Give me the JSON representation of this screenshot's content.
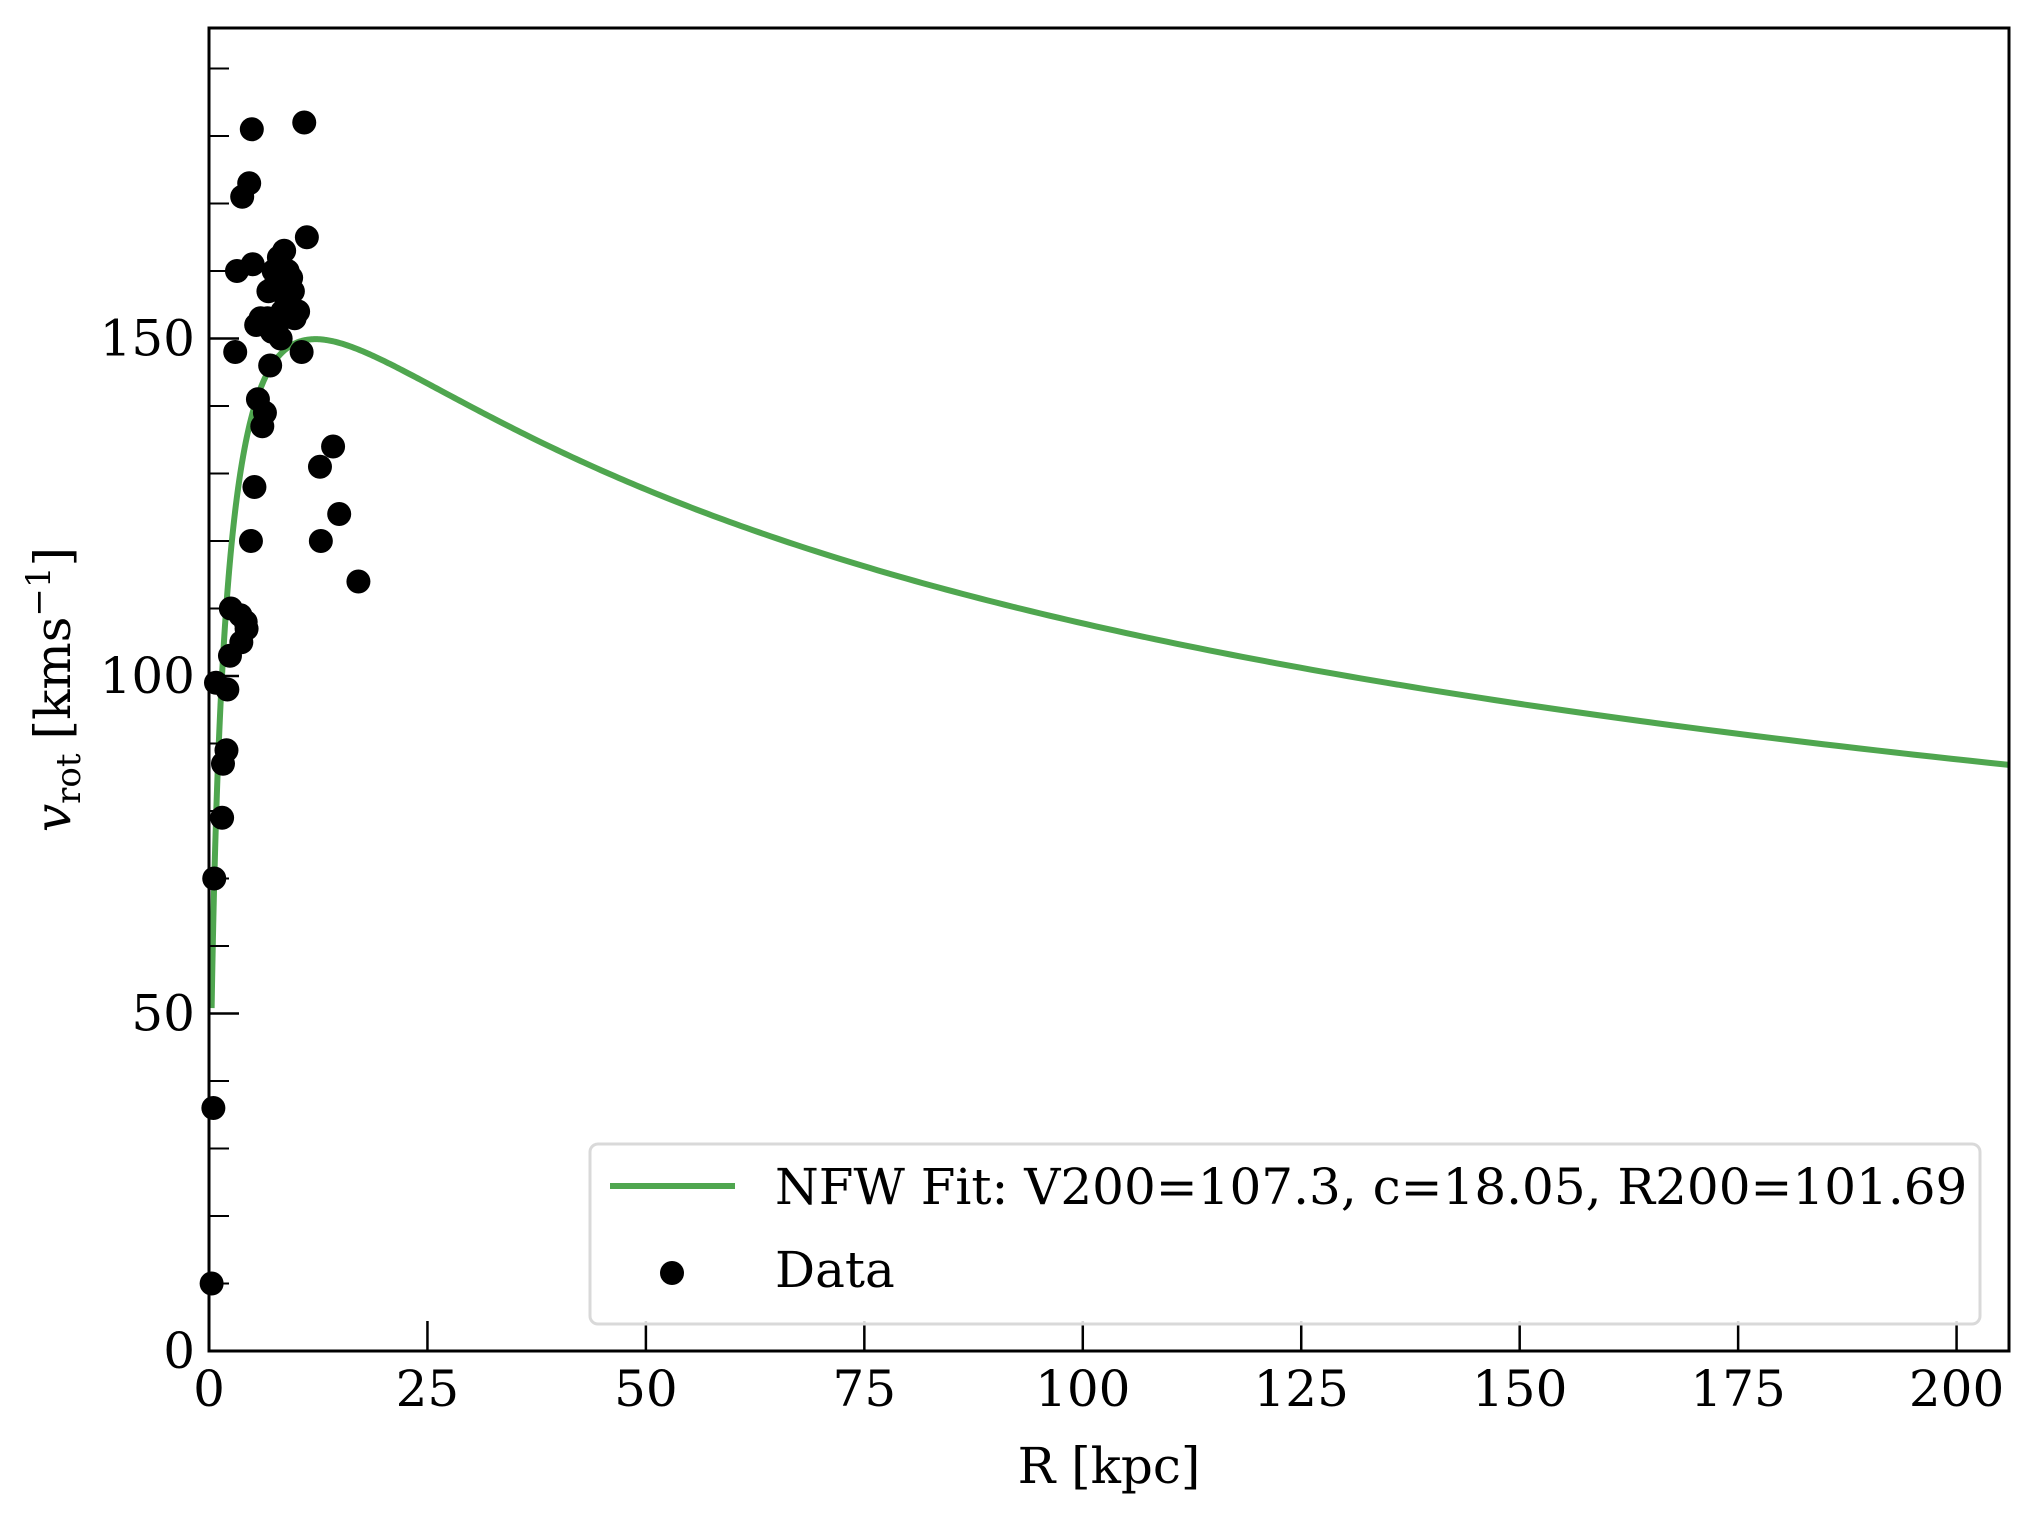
{
  "chart_data": {
    "type": "scatter",
    "xlabel": "R [kpc]",
    "ylabel": {
      "main": "v",
      "sub": "rot",
      "unit_prefix": "[kms",
      "unit_exp": "−1",
      "unit_suffix": "]"
    },
    "xlim": [
      0,
      206
    ],
    "ylim": [
      0,
      196
    ],
    "x_ticks": [
      0,
      25,
      50,
      75,
      100,
      125,
      150,
      175,
      200
    ],
    "x_tick_labels": [
      "0",
      "25",
      "50",
      "75",
      "100",
      "125",
      "150",
      "175",
      "200"
    ],
    "y_ticks_major": [
      0,
      50,
      100,
      150
    ],
    "y_tick_labels": [
      "0",
      "50",
      "100",
      "150"
    ],
    "y_ticks_minor": [
      10,
      20,
      30,
      40,
      60,
      70,
      80,
      90,
      110,
      120,
      130,
      140,
      160,
      170,
      180,
      190
    ],
    "grid": false,
    "legend_position": "lower right",
    "colors": {
      "fit": "#4fa64f",
      "data": "#000000"
    },
    "series": [
      {
        "name": "NFW Fit: V200=107.3, c=18.05, R200=101.69",
        "kind": "line",
        "model": "NFW",
        "V200": 107.3,
        "c": 18.05,
        "R200": 101.69,
        "x_range": [
          0.3,
          206
        ]
      },
      {
        "name": "Data",
        "kind": "scatter",
        "points": [
          [
            0.3,
            10
          ],
          [
            0.5,
            36
          ],
          [
            0.6,
            70
          ],
          [
            0.8,
            99
          ],
          [
            1.5,
            79
          ],
          [
            1.6,
            87
          ],
          [
            2.0,
            89
          ],
          [
            2.1,
            98
          ],
          [
            2.4,
            103
          ],
          [
            2.5,
            110
          ],
          [
            3.0,
            148
          ],
          [
            3.2,
            160
          ],
          [
            3.6,
            109
          ],
          [
            3.7,
            105
          ],
          [
            3.8,
            171
          ],
          [
            4.2,
            108
          ],
          [
            4.3,
            107
          ],
          [
            4.6,
            173
          ],
          [
            4.8,
            120
          ],
          [
            4.9,
            181
          ],
          [
            5.0,
            161
          ],
          [
            5.2,
            128
          ],
          [
            5.4,
            152
          ],
          [
            5.6,
            141
          ],
          [
            5.9,
            153
          ],
          [
            6.1,
            137
          ],
          [
            6.4,
            139
          ],
          [
            6.7,
            153
          ],
          [
            6.8,
            157
          ],
          [
            7.0,
            146
          ],
          [
            7.2,
            151
          ],
          [
            7.4,
            160
          ],
          [
            7.6,
            158
          ],
          [
            7.8,
            152
          ],
          [
            8.0,
            162
          ],
          [
            8.2,
            150
          ],
          [
            8.4,
            154
          ],
          [
            8.6,
            163
          ],
          [
            8.8,
            156
          ],
          [
            9.0,
            160
          ],
          [
            9.2,
            155
          ],
          [
            9.4,
            159
          ],
          [
            9.6,
            157
          ],
          [
            9.8,
            153
          ],
          [
            10.2,
            154
          ],
          [
            10.6,
            148
          ],
          [
            10.9,
            182
          ],
          [
            11.2,
            165
          ],
          [
            12.7,
            131
          ],
          [
            12.8,
            120
          ],
          [
            14.2,
            134
          ],
          [
            14.9,
            124
          ],
          [
            17.1,
            114
          ]
        ]
      }
    ]
  }
}
